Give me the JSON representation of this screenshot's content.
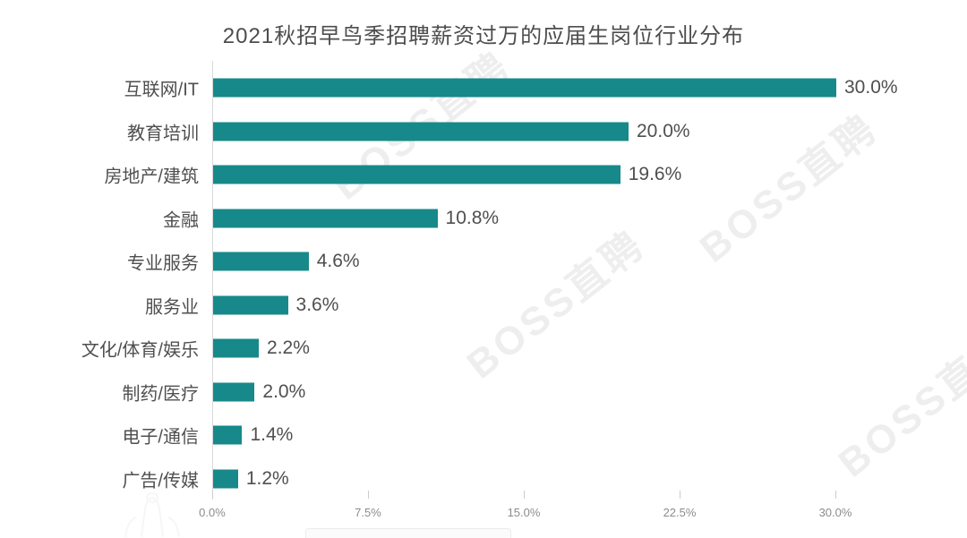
{
  "chart_data": {
    "type": "bar",
    "orientation": "horizontal",
    "title": "2021秋招早鸟季招聘薪资过万的应届生岗位行业分布",
    "categories": [
      "互联网/IT",
      "教育培训",
      "房地产/建筑",
      "金融",
      "专业服务",
      "服务业",
      "文化/体育/娱乐",
      "制药/医疗",
      "电子/通信",
      "广告/传媒"
    ],
    "values": [
      30.0,
      20.0,
      19.6,
      10.8,
      4.6,
      3.6,
      2.2,
      2.0,
      1.4,
      1.2
    ],
    "value_labels": [
      "30.0%",
      "20.0%",
      "19.6%",
      "10.8%",
      "4.6%",
      "3.6%",
      "2.2%",
      "2.0%",
      "1.4%",
      "1.2%"
    ],
    "x_ticks": [
      "0.0%",
      "7.5%",
      "15.0%",
      "22.5%",
      "30.0%"
    ],
    "x_tick_values": [
      0,
      7.5,
      15,
      22.5,
      30
    ],
    "xlim": [
      0,
      30
    ],
    "xlabel": "",
    "ylabel": "",
    "grid": false,
    "legend": false,
    "bar_color": "#17898a"
  },
  "watermark": {
    "text": "BOSS直聘"
  }
}
